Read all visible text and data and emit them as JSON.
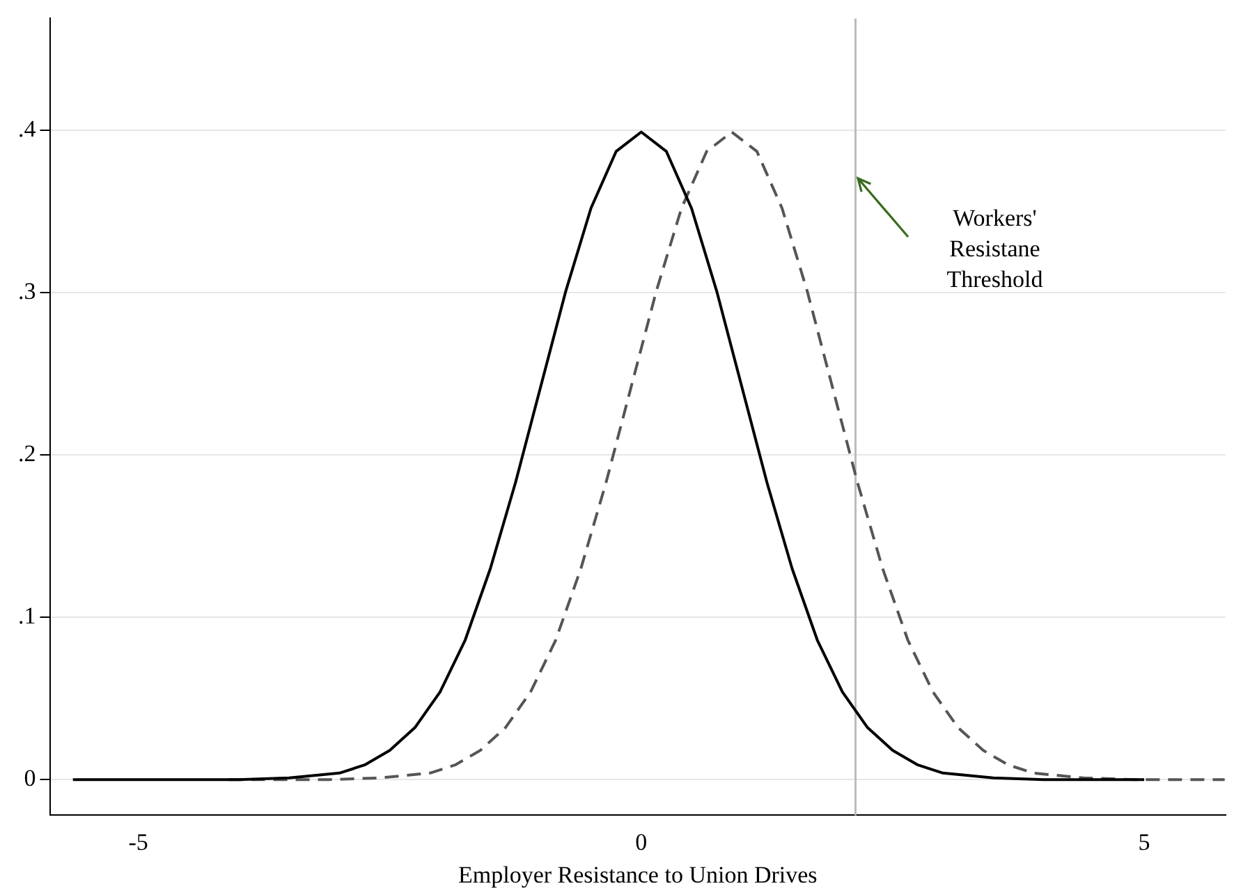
{
  "chart_data": {
    "type": "line",
    "xlabel": "Employer Resistance to Union Drives",
    "xlim": [
      -5.88,
      5.81
    ],
    "xticks": [
      -5,
      0,
      5
    ],
    "ylim": [
      -0.022,
      0.469
    ],
    "yticks": [
      {
        "value": 0,
        "label": "0"
      },
      {
        "value": 0.1,
        "label": ".1"
      },
      {
        "value": 0.2,
        "label": ".2"
      },
      {
        "value": 0.3,
        "label": ".3"
      },
      {
        "value": 0.4,
        "label": ".4"
      }
    ],
    "grid": "y",
    "legend": false,
    "marker": "none",
    "series": [
      {
        "color": "#000000",
        "line_style": "solid",
        "x": [
          -5.65,
          -4.5,
          -4,
          -3.5,
          -3,
          -2.75,
          -2.5,
          -2.25,
          -2,
          -1.75,
          -1.5,
          -1.25,
          -1,
          -0.75,
          -0.5,
          -0.25,
          0,
          0.25,
          0.5,
          0.75,
          1,
          1.25,
          1.5,
          1.75,
          2,
          2.25,
          2.5,
          2.75,
          3,
          3.5,
          4,
          4.5,
          5
        ],
        "values": [
          0,
          0,
          0,
          0.001,
          0.004,
          0.009,
          0.018,
          0.032,
          0.054,
          0.086,
          0.13,
          0.183,
          0.242,
          0.301,
          0.352,
          0.387,
          0.399,
          0.387,
          0.352,
          0.301,
          0.242,
          0.183,
          0.13,
          0.086,
          0.054,
          0.032,
          0.018,
          0.009,
          0.004,
          0.001,
          0,
          0,
          0
        ]
      },
      {
        "color": "#555555",
        "line_style": "dashed",
        "x": [
          -4.1,
          -3.1,
          -2.6,
          -2.1,
          -1.85,
          -1.6,
          -1.35,
          -1.1,
          -0.85,
          -0.6,
          -0.35,
          -0.1,
          0.15,
          0.4,
          0.65,
          0.9,
          1.15,
          1.4,
          1.65,
          1.9,
          2.15,
          2.4,
          2.65,
          2.9,
          3.15,
          3.4,
          3.65,
          3.9,
          4.4,
          4.9,
          5.8
        ],
        "values": [
          0,
          0,
          0.001,
          0.004,
          0.009,
          0.018,
          0.032,
          0.054,
          0.086,
          0.13,
          0.183,
          0.242,
          0.301,
          0.352,
          0.387,
          0.399,
          0.387,
          0.352,
          0.301,
          0.242,
          0.183,
          0.13,
          0.086,
          0.054,
          0.032,
          0.018,
          0.009,
          0.004,
          0.001,
          0,
          0
        ]
      }
    ],
    "ref_lines": [
      {
        "axis": "x",
        "value": 2.13,
        "color": "#bbbbbb"
      }
    ],
    "annotations": [
      "Workers' Resistane Threshold"
    ]
  }
}
